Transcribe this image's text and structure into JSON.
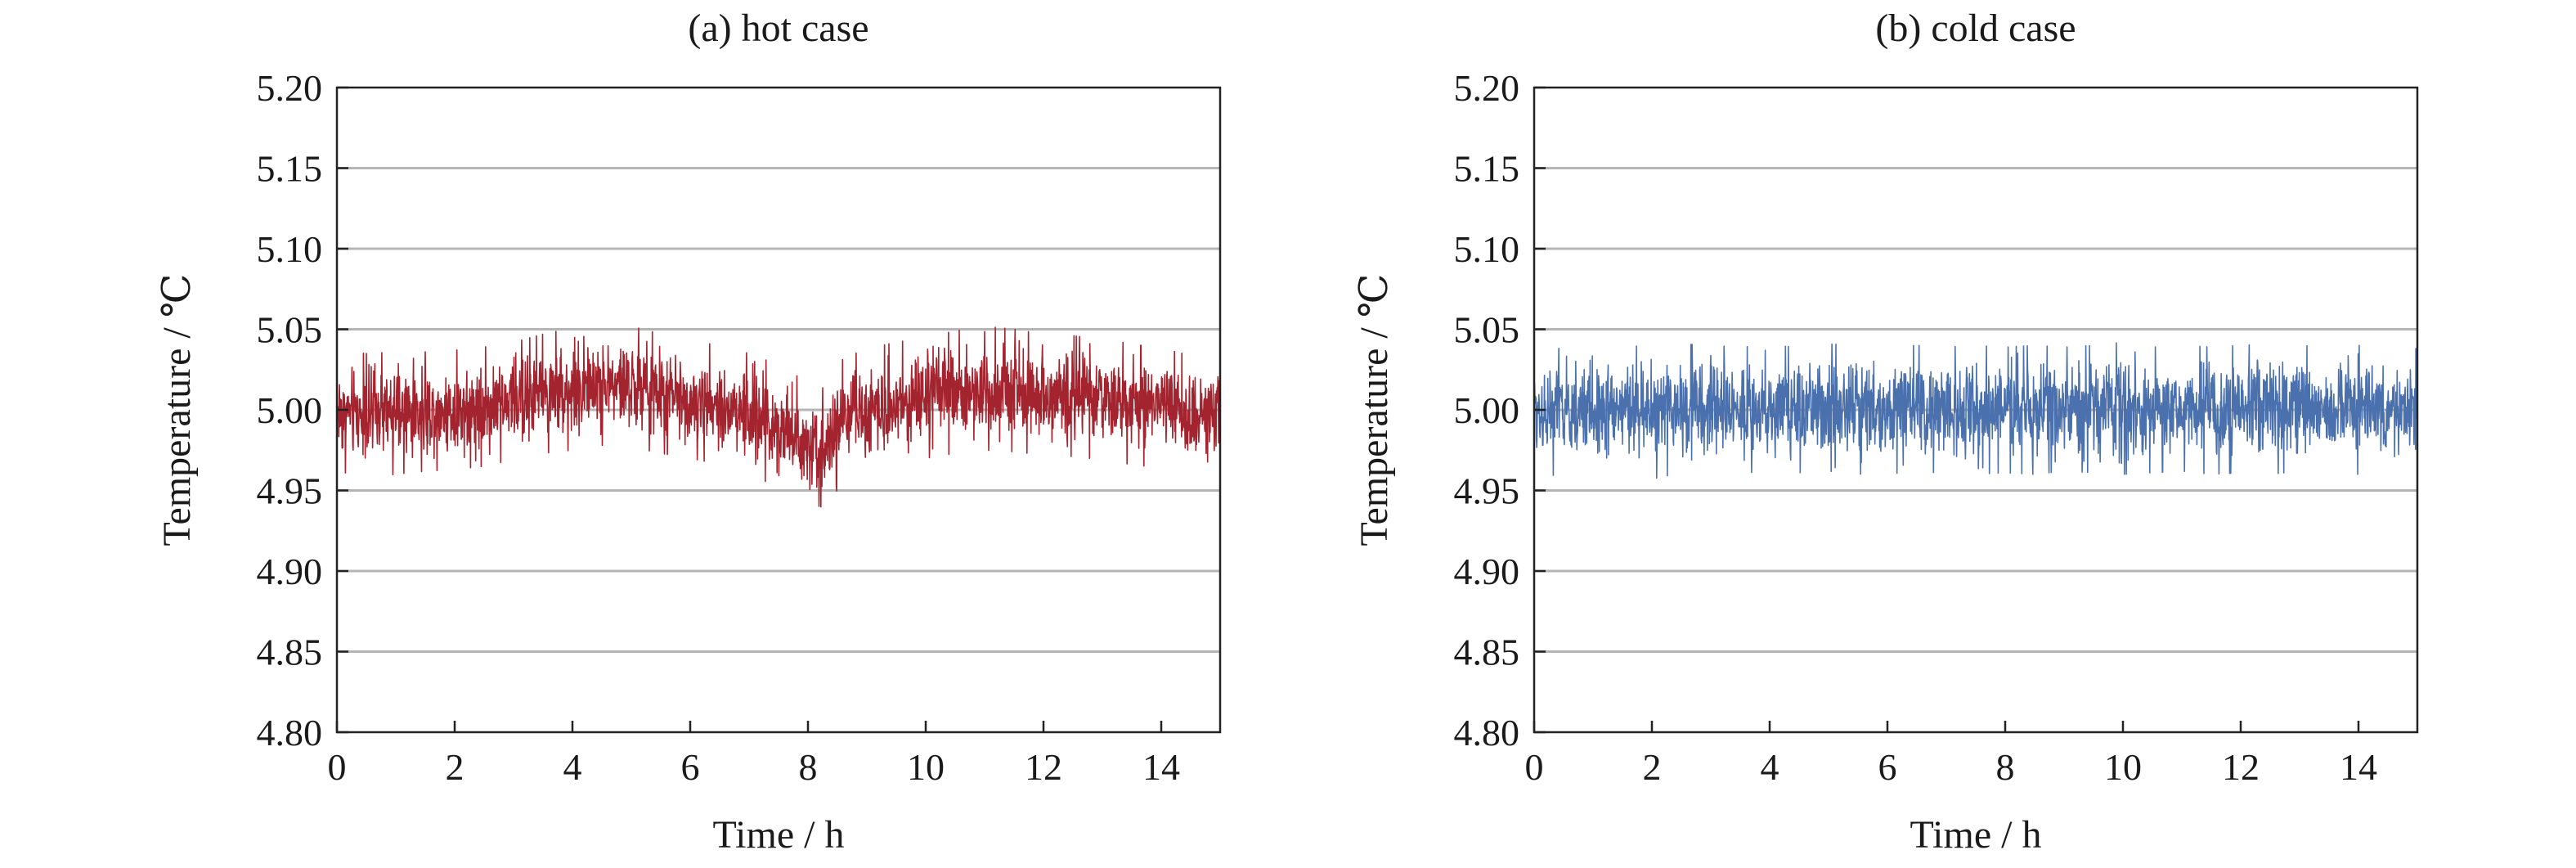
{
  "chart_data": [
    {
      "type": "line",
      "title": "(a) hot case",
      "xlabel": "Time / h",
      "ylabel": "Temperature / ℃",
      "xlim": [
        0,
        15
      ],
      "ylim": [
        4.8,
        5.2
      ],
      "xticks": [
        "0",
        "2",
        "4",
        "6",
        "8",
        "10",
        "12",
        "14"
      ],
      "yticks": [
        "4.80",
        "4.85",
        "4.90",
        "4.95",
        "5.00",
        "5.05",
        "5.10",
        "5.15",
        "5.20"
      ],
      "grid": "horizontal",
      "color": "#a3232e",
      "series": [
        {
          "x": [
            0,
            0.5,
            1,
            1.5,
            2,
            2.5,
            3,
            3.5,
            4,
            4.5,
            5,
            5.5,
            6,
            6.5,
            7,
            7.5,
            8,
            8.3,
            8.6,
            9,
            9.5,
            10,
            10.5,
            11,
            11.5,
            12,
            12.5,
            13,
            13.5,
            14,
            14.5,
            15
          ],
          "center": [
            5.0,
            4.998,
            4.999,
            5.0,
            5.001,
            5.003,
            5.006,
            5.01,
            5.013,
            5.015,
            5.013,
            5.01,
            5.007,
            5.003,
            4.998,
            4.991,
            4.98,
            4.976,
            4.994,
            5.0,
            5.005,
            5.008,
            5.011,
            5.013,
            5.012,
            5.01,
            5.009,
            5.007,
            5.004,
            5.002,
            5.0,
            4.999
          ],
          "upper": [
            5.037,
            5.035,
            5.036,
            5.036,
            5.037,
            5.039,
            5.042,
            5.047,
            5.051,
            5.053,
            5.052,
            5.047,
            5.043,
            5.04,
            5.035,
            5.028,
            5.017,
            5.013,
            5.032,
            5.038,
            5.042,
            5.045,
            5.049,
            5.052,
            5.05,
            5.047,
            5.046,
            5.044,
            5.041,
            5.038,
            5.034,
            5.033
          ],
          "lower": [
            4.962,
            4.958,
            4.96,
            4.962,
            4.963,
            4.965,
            4.969,
            4.973,
            4.975,
            4.978,
            4.977,
            4.973,
            4.97,
            4.966,
            4.96,
            4.952,
            4.942,
            4.939,
            4.956,
            4.962,
            4.967,
            4.97,
            4.973,
            4.975,
            4.974,
            4.972,
            4.971,
            4.969,
            4.966,
            4.964,
            4.962,
            4.96
          ]
        }
      ]
    },
    {
      "type": "line",
      "title": "(b) cold case",
      "xlabel": "Time / h",
      "ylabel": "Temperature / ℃",
      "xlim": [
        0,
        15
      ],
      "ylim": [
        4.8,
        5.2
      ],
      "xticks": [
        "0",
        "2",
        "4",
        "6",
        "8",
        "10",
        "12",
        "14"
      ],
      "yticks": [
        "4.80",
        "4.85",
        "4.90",
        "4.95",
        "5.00",
        "5.05",
        "5.10",
        "5.15",
        "5.20"
      ],
      "grid": "horizontal",
      "color": "#4a71ad",
      "series": [
        {
          "x": [
            0,
            0.5,
            1,
            1.5,
            2,
            2.5,
            3,
            3.5,
            4,
            4.5,
            5,
            5.5,
            6,
            6.5,
            7,
            7.5,
            8,
            8.5,
            9,
            9.5,
            10,
            10.5,
            11,
            11.5,
            12,
            12.5,
            13,
            13.5,
            14,
            14.5,
            15
          ],
          "center": [
            5.002,
            5.001,
            5.002,
            5.002,
            5.001,
            5.002,
            5.001,
            5.002,
            5.001,
            5.002,
            5.001,
            5.002,
            5.001,
            5.002,
            5.001,
            5.002,
            5.001,
            5.002,
            5.001,
            5.002,
            5.001,
            5.002,
            5.001,
            5.002,
            5.001,
            5.002,
            5.001,
            5.002,
            5.001,
            5.002,
            5.001
          ],
          "upper": [
            5.039,
            5.038,
            5.042,
            5.04,
            5.039,
            5.041,
            5.04,
            5.039,
            5.04,
            5.039,
            5.041,
            5.04,
            5.039,
            5.04,
            5.039,
            5.04,
            5.039,
            5.04,
            5.039,
            5.04,
            5.042,
            5.039,
            5.04,
            5.039,
            5.04,
            5.041,
            5.04,
            5.039,
            5.04,
            5.039,
            5.038
          ],
          "lower": [
            4.962,
            4.958,
            4.96,
            4.962,
            4.957,
            4.961,
            4.96,
            4.962,
            4.96,
            4.961,
            4.962,
            4.96,
            4.961,
            4.96,
            4.962,
            4.96,
            4.961,
            4.96,
            4.962,
            4.961,
            4.96,
            4.961,
            4.962,
            4.96,
            4.961,
            4.96,
            4.962,
            4.961,
            4.96,
            4.961,
            4.962
          ]
        }
      ]
    }
  ]
}
